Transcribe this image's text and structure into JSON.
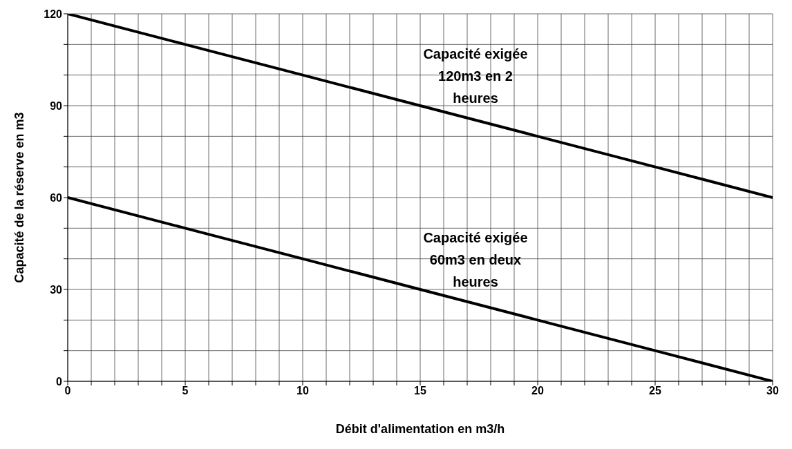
{
  "chart_data": {
    "type": "line",
    "xlabel": "Débit d'alimentation en m3/h",
    "ylabel": "Capacité de la réserve en m3",
    "x": [
      0,
      5,
      10,
      15,
      20,
      25,
      30
    ],
    "series": [
      {
        "name": "Capacité exigée 120m3 en 2 heures",
        "color": "#000000",
        "values": [
          120,
          110,
          100,
          90,
          80,
          70,
          60
        ]
      },
      {
        "name": "Capacité exigée 60m3 en deux heures",
        "color": "#000000",
        "values": [
          60,
          50,
          40,
          30,
          20,
          10,
          0
        ]
      }
    ],
    "xlim": [
      0,
      30
    ],
    "ylim": [
      0,
      120
    ],
    "xticks": [
      0,
      {
        "value": 1,
        "label": null
      },
      {
        "value": 2,
        "label": null
      },
      {
        "value": 3,
        "label": null
      },
      {
        "value": 4,
        "label": null
      },
      5,
      {
        "value": 6,
        "label": null
      },
      {
        "value": 7,
        "label": null
      },
      {
        "value": 8,
        "label": null
      },
      {
        "value": 9,
        "label": null
      },
      10,
      {
        "value": 11,
        "label": null
      },
      {
        "value": 12,
        "label": null
      },
      {
        "value": 13,
        "label": null
      },
      {
        "value": 14,
        "label": null
      },
      15,
      {
        "value": 16,
        "label": null
      },
      {
        "value": 17,
        "label": null
      },
      {
        "value": 18,
        "label": null
      },
      {
        "value": 19,
        "label": null
      },
      20,
      {
        "value": 21,
        "label": null
      },
      {
        "value": 22,
        "label": null
      },
      {
        "value": 23,
        "label": null
      },
      {
        "value": 24,
        "label": null
      },
      25,
      {
        "value": 26,
        "label": null
      },
      {
        "value": 27,
        "label": null
      },
      {
        "value": 28,
        "label": null
      },
      {
        "value": 29,
        "label": null
      },
      30
    ],
    "yticks": [
      0,
      {
        "value": 10,
        "label": null
      },
      {
        "value": 20,
        "label": null
      },
      30,
      {
        "value": 40,
        "label": null
      },
      {
        "value": 50,
        "label": null
      },
      60,
      {
        "value": 70,
        "label": null
      },
      {
        "value": 80,
        "label": null
      },
      90,
      {
        "value": 100,
        "label": null
      },
      {
        "value": 110,
        "label": null
      },
      120
    ],
    "grid": true,
    "marker": "none",
    "line_style": "solid"
  }
}
